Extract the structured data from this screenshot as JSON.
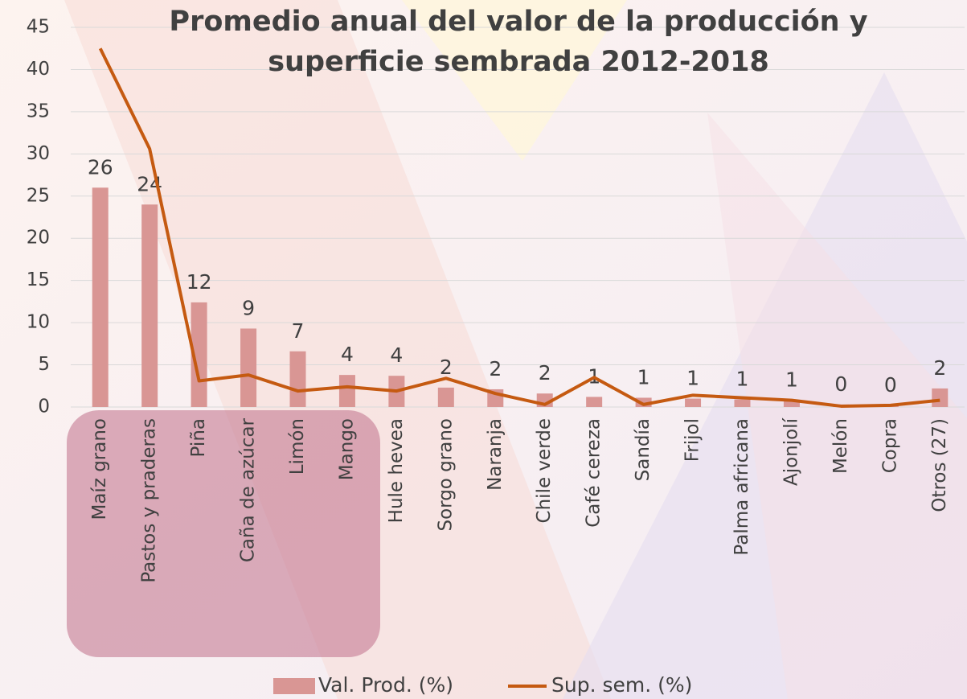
{
  "chart_data": {
    "type": "bar",
    "title": "Promedio anual del valor de la producción y superficie sembrada 2012-2018",
    "categories": [
      "Maíz grano",
      "Pastos y praderas",
      "Piña",
      "Caña de azúcar",
      "Limón",
      "Mango",
      "Hule hevea",
      "Sorgo grano",
      "Naranja",
      "Chile verde",
      "Café cereza",
      "Sandía",
      "Frijol",
      "Palma africana",
      "Ajonjolí",
      "Melón",
      "Copra",
      "Otros (27)"
    ],
    "series": [
      {
        "name": "Val. Prod. (%)",
        "type": "bar",
        "color": "#d99694",
        "values": [
          26,
          24,
          12.4,
          9.3,
          6.6,
          3.8,
          3.7,
          2.3,
          2.1,
          1.6,
          1.2,
          1.1,
          1.0,
          0.9,
          0.8,
          0.3,
          0.2,
          2.2
        ],
        "value_labels": [
          "26",
          "24",
          "12",
          "9",
          "7",
          "4",
          "4",
          "2",
          "2",
          "2",
          "1",
          "1",
          "1",
          "1",
          "1",
          "0",
          "0",
          "2"
        ]
      },
      {
        "name": "Sup. sem. (%)",
        "type": "line",
        "color": "#c55a11",
        "values": [
          42.5,
          30.6,
          3.1,
          3.8,
          1.9,
          2.4,
          1.9,
          3.4,
          1.6,
          0.3,
          3.5,
          0.3,
          1.4,
          1.1,
          0.8,
          0.1,
          0.2,
          0.8
        ]
      }
    ],
    "ylim": [
      0,
      45
    ],
    "yticks": [
      0,
      5,
      10,
      15,
      20,
      25,
      30,
      35,
      40,
      45
    ],
    "grid": true,
    "legend": "bottom"
  }
}
